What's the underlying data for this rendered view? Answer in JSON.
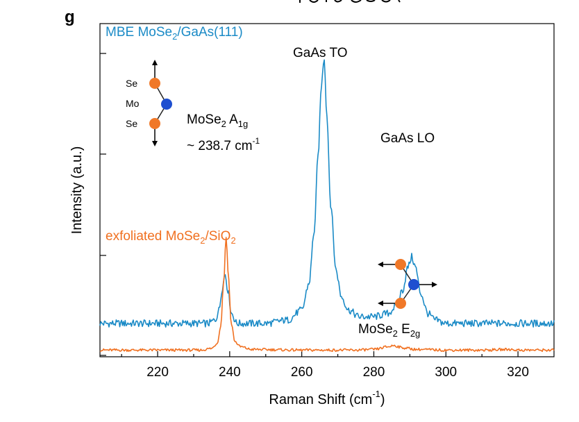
{
  "panel_label": "g",
  "chart_data": {
    "type": "line",
    "xlabel": "Raman Shift (cm",
    "xlabel_sup": "-1",
    "xlabel_close": ")",
    "ylabel": "Intensity (a.u.)",
    "xlim": [
      204,
      330
    ],
    "xticks": [
      220,
      240,
      260,
      280,
      300,
      320
    ],
    "grid": false,
    "series": [
      {
        "name_parts": [
          "MBE MoSe",
          "2",
          "/GaAs(111)"
        ],
        "color": "#1a8ac6",
        "baseline": 0.1,
        "points": [
          [
            204,
            0.1
          ],
          [
            210,
            0.1
          ],
          [
            220,
            0.1
          ],
          [
            230,
            0.1
          ],
          [
            234,
            0.1
          ],
          [
            236,
            0.11
          ],
          [
            237,
            0.14
          ],
          [
            238,
            0.21
          ],
          [
            238.7,
            0.25
          ],
          [
            239.5,
            0.2
          ],
          [
            240.5,
            0.13
          ],
          [
            242,
            0.1
          ],
          [
            250,
            0.1
          ],
          [
            256,
            0.11
          ],
          [
            260,
            0.14
          ],
          [
            262,
            0.22
          ],
          [
            263.5,
            0.38
          ],
          [
            264.5,
            0.6
          ],
          [
            265.5,
            0.82
          ],
          [
            266.2,
            0.9
          ],
          [
            267,
            0.72
          ],
          [
            268,
            0.46
          ],
          [
            269.5,
            0.26
          ],
          [
            271,
            0.18
          ],
          [
            273,
            0.14
          ],
          [
            276,
            0.12
          ],
          [
            280,
            0.12
          ],
          [
            284,
            0.13
          ],
          [
            286,
            0.15
          ],
          [
            288,
            0.2
          ],
          [
            289.5,
            0.27
          ],
          [
            290.5,
            0.3
          ],
          [
            291.5,
            0.27
          ],
          [
            293,
            0.19
          ],
          [
            295,
            0.13
          ],
          [
            297,
            0.11
          ],
          [
            300,
            0.1
          ],
          [
            310,
            0.1
          ],
          [
            320,
            0.1
          ],
          [
            330,
            0.1
          ]
        ]
      },
      {
        "name_parts": [
          "exfoliated MoSe",
          "2",
          "/SiO",
          "2"
        ],
        "color": "#f07020",
        "baseline": 0.02,
        "points": [
          [
            204,
            0.02
          ],
          [
            220,
            0.02
          ],
          [
            232,
            0.02
          ],
          [
            235,
            0.025
          ],
          [
            236.5,
            0.04
          ],
          [
            237.5,
            0.09
          ],
          [
            238.3,
            0.22
          ],
          [
            239,
            0.36
          ],
          [
            239.6,
            0.25
          ],
          [
            240.4,
            0.1
          ],
          [
            241.5,
            0.045
          ],
          [
            243,
            0.03
          ],
          [
            246,
            0.022
          ],
          [
            260,
            0.02
          ],
          [
            275,
            0.02
          ],
          [
            280,
            0.022
          ],
          [
            284,
            0.03
          ],
          [
            285.5,
            0.034
          ],
          [
            288,
            0.027
          ],
          [
            292,
            0.022
          ],
          [
            300,
            0.02
          ],
          [
            310,
            0.02
          ],
          [
            318,
            0.022
          ],
          [
            320,
            0.02
          ],
          [
            330,
            0.02
          ]
        ]
      }
    ],
    "annotations": {
      "gaas_to": "GaAs TO",
      "gaas_lo": "GaAs LO",
      "a1g_pre": "MoSe",
      "a1g_sub2": "2",
      "a1g_mid": " A",
      "a1g_sub": "1g",
      "a1g_value": "~ 238.7 cm",
      "a1g_value_sup": "-1",
      "e2g_pre": "MoSe",
      "e2g_sub2": "2",
      "e2g_mid": " E",
      "e2g_sub": "2g",
      "atom_se_top": "Se",
      "atom_mo": "Mo",
      "atom_se_bottom": "Se"
    },
    "atom_colors": {
      "se": "#f07828",
      "mo": "#1e4fd0"
    }
  }
}
